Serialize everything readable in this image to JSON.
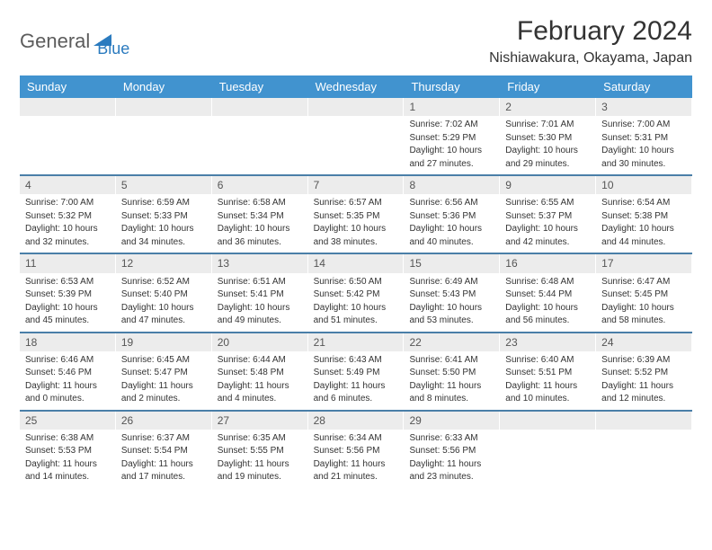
{
  "logo": {
    "word1": "General",
    "word2": "Blue",
    "icon_color": "#2b7bbf"
  },
  "title": "February 2024",
  "location": "Nishiawakura, Okayama, Japan",
  "header_bg": "#4193cf",
  "daynum_bg": "#ececec",
  "rule_color": "#4a7fa8",
  "day_names": [
    "Sunday",
    "Monday",
    "Tuesday",
    "Wednesday",
    "Thursday",
    "Friday",
    "Saturday"
  ],
  "weeks": [
    [
      null,
      null,
      null,
      null,
      {
        "n": "1",
        "sr": "Sunrise: 7:02 AM",
        "ss": "Sunset: 5:29 PM",
        "d1": "Daylight: 10 hours",
        "d2": "and 27 minutes."
      },
      {
        "n": "2",
        "sr": "Sunrise: 7:01 AM",
        "ss": "Sunset: 5:30 PM",
        "d1": "Daylight: 10 hours",
        "d2": "and 29 minutes."
      },
      {
        "n": "3",
        "sr": "Sunrise: 7:00 AM",
        "ss": "Sunset: 5:31 PM",
        "d1": "Daylight: 10 hours",
        "d2": "and 30 minutes."
      }
    ],
    [
      {
        "n": "4",
        "sr": "Sunrise: 7:00 AM",
        "ss": "Sunset: 5:32 PM",
        "d1": "Daylight: 10 hours",
        "d2": "and 32 minutes."
      },
      {
        "n": "5",
        "sr": "Sunrise: 6:59 AM",
        "ss": "Sunset: 5:33 PM",
        "d1": "Daylight: 10 hours",
        "d2": "and 34 minutes."
      },
      {
        "n": "6",
        "sr": "Sunrise: 6:58 AM",
        "ss": "Sunset: 5:34 PM",
        "d1": "Daylight: 10 hours",
        "d2": "and 36 minutes."
      },
      {
        "n": "7",
        "sr": "Sunrise: 6:57 AM",
        "ss": "Sunset: 5:35 PM",
        "d1": "Daylight: 10 hours",
        "d2": "and 38 minutes."
      },
      {
        "n": "8",
        "sr": "Sunrise: 6:56 AM",
        "ss": "Sunset: 5:36 PM",
        "d1": "Daylight: 10 hours",
        "d2": "and 40 minutes."
      },
      {
        "n": "9",
        "sr": "Sunrise: 6:55 AM",
        "ss": "Sunset: 5:37 PM",
        "d1": "Daylight: 10 hours",
        "d2": "and 42 minutes."
      },
      {
        "n": "10",
        "sr": "Sunrise: 6:54 AM",
        "ss": "Sunset: 5:38 PM",
        "d1": "Daylight: 10 hours",
        "d2": "and 44 minutes."
      }
    ],
    [
      {
        "n": "11",
        "sr": "Sunrise: 6:53 AM",
        "ss": "Sunset: 5:39 PM",
        "d1": "Daylight: 10 hours",
        "d2": "and 45 minutes."
      },
      {
        "n": "12",
        "sr": "Sunrise: 6:52 AM",
        "ss": "Sunset: 5:40 PM",
        "d1": "Daylight: 10 hours",
        "d2": "and 47 minutes."
      },
      {
        "n": "13",
        "sr": "Sunrise: 6:51 AM",
        "ss": "Sunset: 5:41 PM",
        "d1": "Daylight: 10 hours",
        "d2": "and 49 minutes."
      },
      {
        "n": "14",
        "sr": "Sunrise: 6:50 AM",
        "ss": "Sunset: 5:42 PM",
        "d1": "Daylight: 10 hours",
        "d2": "and 51 minutes."
      },
      {
        "n": "15",
        "sr": "Sunrise: 6:49 AM",
        "ss": "Sunset: 5:43 PM",
        "d1": "Daylight: 10 hours",
        "d2": "and 53 minutes."
      },
      {
        "n": "16",
        "sr": "Sunrise: 6:48 AM",
        "ss": "Sunset: 5:44 PM",
        "d1": "Daylight: 10 hours",
        "d2": "and 56 minutes."
      },
      {
        "n": "17",
        "sr": "Sunrise: 6:47 AM",
        "ss": "Sunset: 5:45 PM",
        "d1": "Daylight: 10 hours",
        "d2": "and 58 minutes."
      }
    ],
    [
      {
        "n": "18",
        "sr": "Sunrise: 6:46 AM",
        "ss": "Sunset: 5:46 PM",
        "d1": "Daylight: 11 hours",
        "d2": "and 0 minutes."
      },
      {
        "n": "19",
        "sr": "Sunrise: 6:45 AM",
        "ss": "Sunset: 5:47 PM",
        "d1": "Daylight: 11 hours",
        "d2": "and 2 minutes."
      },
      {
        "n": "20",
        "sr": "Sunrise: 6:44 AM",
        "ss": "Sunset: 5:48 PM",
        "d1": "Daylight: 11 hours",
        "d2": "and 4 minutes."
      },
      {
        "n": "21",
        "sr": "Sunrise: 6:43 AM",
        "ss": "Sunset: 5:49 PM",
        "d1": "Daylight: 11 hours",
        "d2": "and 6 minutes."
      },
      {
        "n": "22",
        "sr": "Sunrise: 6:41 AM",
        "ss": "Sunset: 5:50 PM",
        "d1": "Daylight: 11 hours",
        "d2": "and 8 minutes."
      },
      {
        "n": "23",
        "sr": "Sunrise: 6:40 AM",
        "ss": "Sunset: 5:51 PM",
        "d1": "Daylight: 11 hours",
        "d2": "and 10 minutes."
      },
      {
        "n": "24",
        "sr": "Sunrise: 6:39 AM",
        "ss": "Sunset: 5:52 PM",
        "d1": "Daylight: 11 hours",
        "d2": "and 12 minutes."
      }
    ],
    [
      {
        "n": "25",
        "sr": "Sunrise: 6:38 AM",
        "ss": "Sunset: 5:53 PM",
        "d1": "Daylight: 11 hours",
        "d2": "and 14 minutes."
      },
      {
        "n": "26",
        "sr": "Sunrise: 6:37 AM",
        "ss": "Sunset: 5:54 PM",
        "d1": "Daylight: 11 hours",
        "d2": "and 17 minutes."
      },
      {
        "n": "27",
        "sr": "Sunrise: 6:35 AM",
        "ss": "Sunset: 5:55 PM",
        "d1": "Daylight: 11 hours",
        "d2": "and 19 minutes."
      },
      {
        "n": "28",
        "sr": "Sunrise: 6:34 AM",
        "ss": "Sunset: 5:56 PM",
        "d1": "Daylight: 11 hours",
        "d2": "and 21 minutes."
      },
      {
        "n": "29",
        "sr": "Sunrise: 6:33 AM",
        "ss": "Sunset: 5:56 PM",
        "d1": "Daylight: 11 hours",
        "d2": "and 23 minutes."
      },
      null,
      null
    ]
  ]
}
